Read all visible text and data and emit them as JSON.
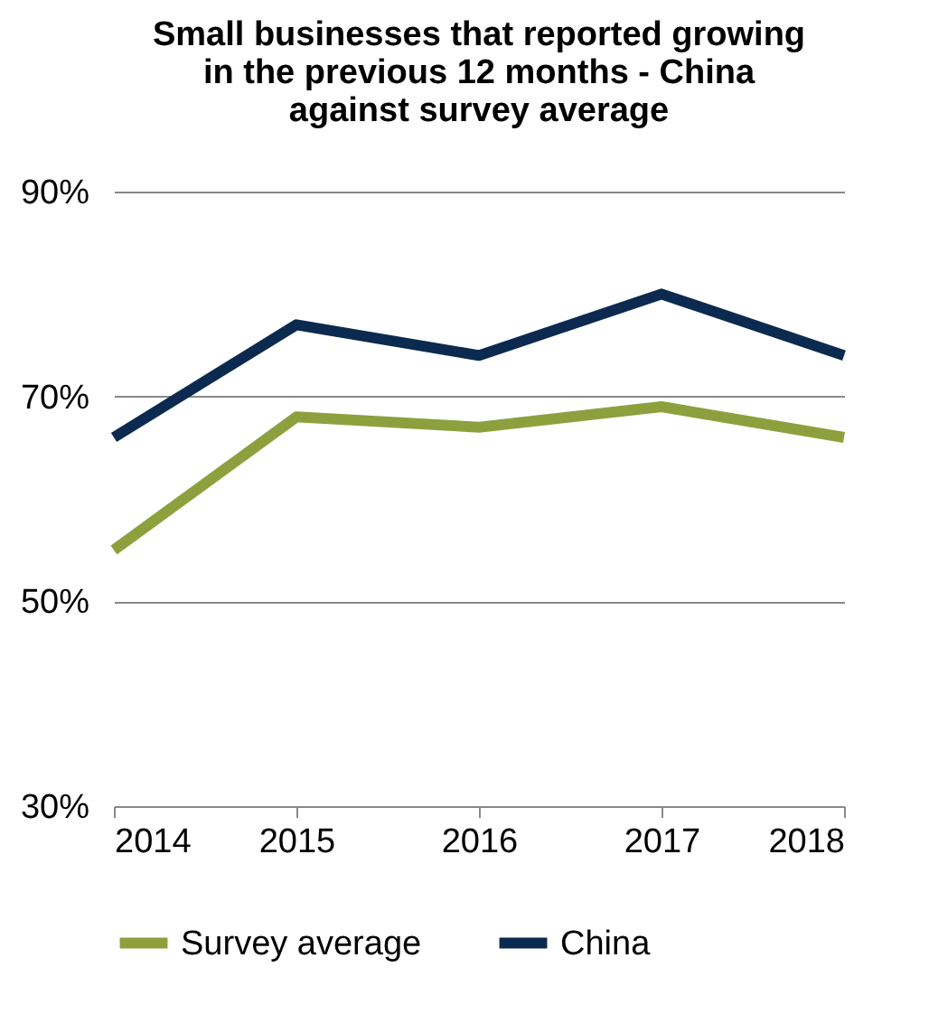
{
  "chart_data": {
    "type": "line",
    "title": "Small businesses that reported growing in the previous 12 months - China against survey average",
    "x": [
      2014,
      2015,
      2016,
      2017,
      2018
    ],
    "xlim": [
      2014,
      2018
    ],
    "xticks": [
      2014,
      2015,
      2016,
      2017,
      2018
    ],
    "ylim": [
      30,
      90
    ],
    "yticks": [
      {
        "value": 30,
        "label": "30%"
      },
      {
        "value": 50,
        "label": "50%"
      },
      {
        "value": 70,
        "label": "70%"
      },
      {
        "value": 90,
        "label": "90%"
      }
    ],
    "series": [
      {
        "name": "Survey average",
        "color": "#8ea03e",
        "values": [
          55,
          68,
          67,
          69,
          66
        ]
      },
      {
        "name": "China",
        "color": "#0c2a4f",
        "values": [
          66,
          77,
          74,
          80,
          74
        ]
      }
    ],
    "grid": "y",
    "legend": "bottom",
    "marker": "none",
    "line_style": "solid"
  }
}
